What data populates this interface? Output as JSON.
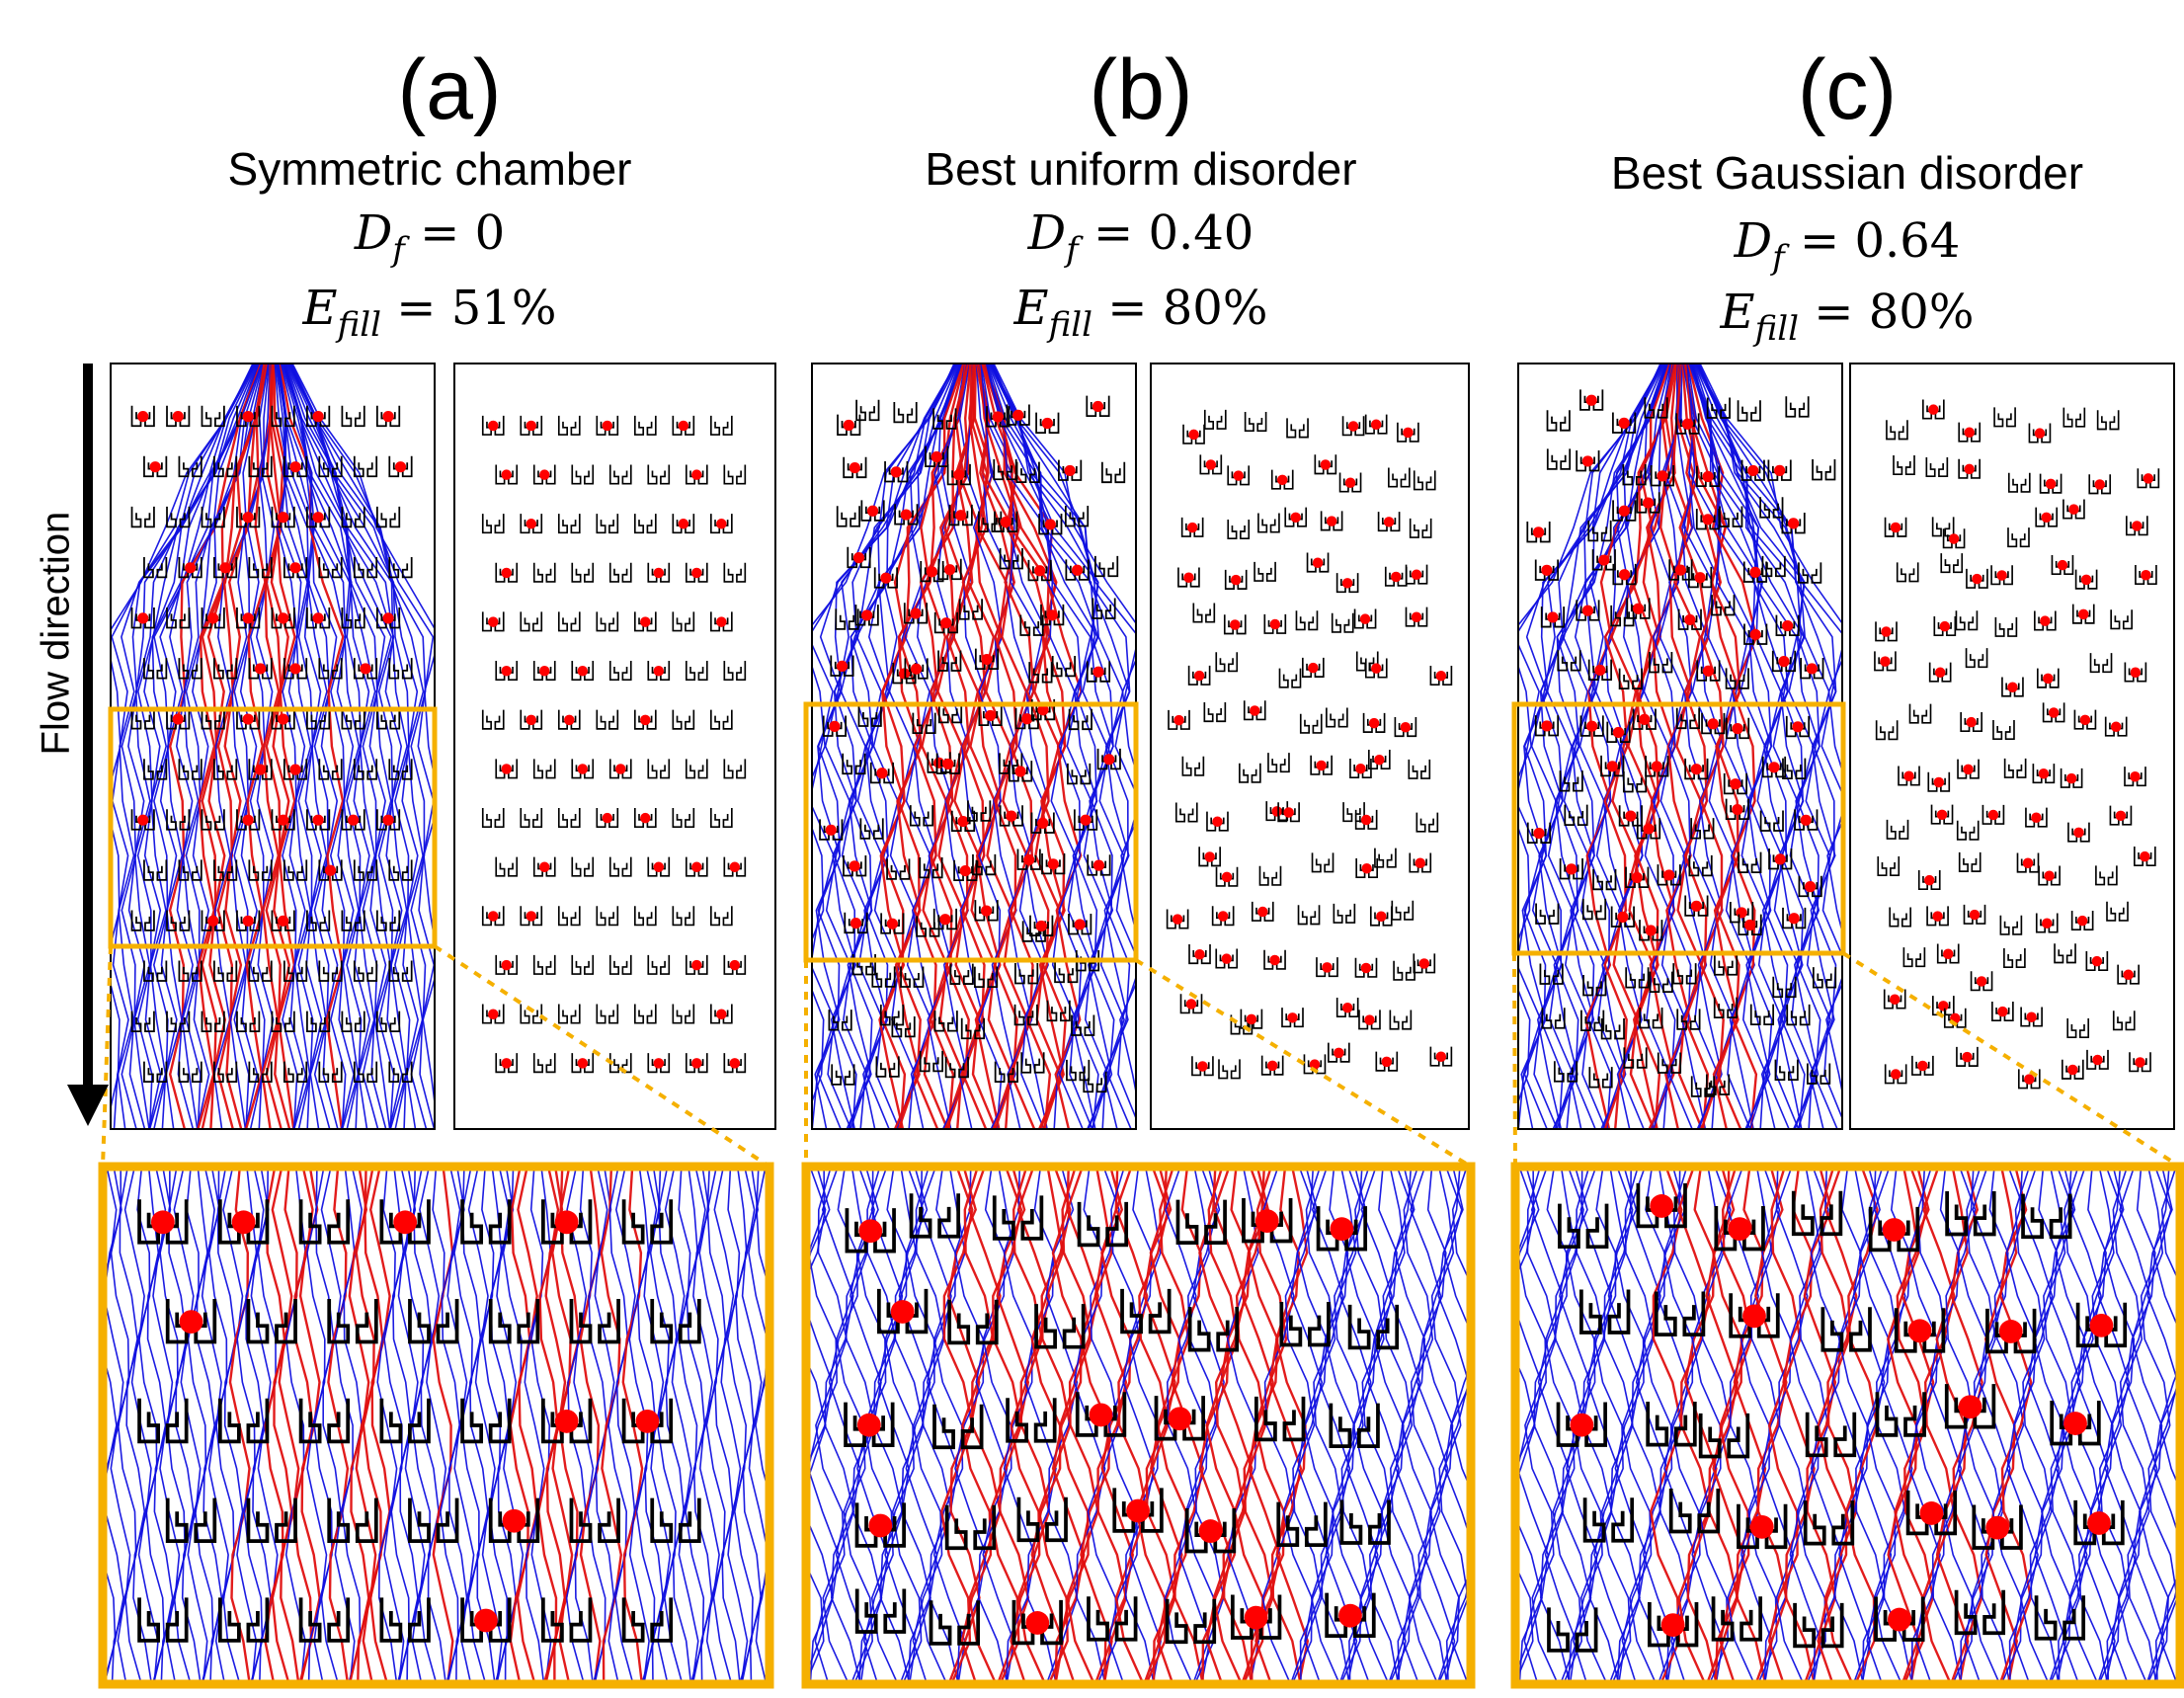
{
  "panels": [
    {
      "letter": "(a)",
      "subtitle": "Symmetric chamber",
      "df_symbol": "D",
      "df_sub": "f",
      "df_value": "= 0",
      "efill_symbol": "E",
      "efill_sub": "fill",
      "efill_value": "= 51%",
      "layout": "symmetric"
    },
    {
      "letter": "(b)",
      "subtitle": "Best uniform disorder",
      "df_symbol": "D",
      "df_sub": "f",
      "df_value": "= 0.40",
      "efill_symbol": "E",
      "efill_sub": "fill",
      "efill_value": "= 80%",
      "layout": "uniform-disorder"
    },
    {
      "letter": "(c)",
      "subtitle": "Best Gaussian disorder",
      "df_symbol": "D",
      "df_sub": "f",
      "df_value": "= 0.64",
      "efill_symbol": "E",
      "efill_sub": "fill",
      "efill_value": "= 80%",
      "layout": "gaussian-disorder"
    }
  ],
  "flow_label": "Flow direction",
  "colors": {
    "streamline": "#1010e0",
    "captured_streamline": "#e01010",
    "captured_cell": "#ff0000",
    "zoom_frame": "#f5b000",
    "trap_outline": "#000000"
  }
}
